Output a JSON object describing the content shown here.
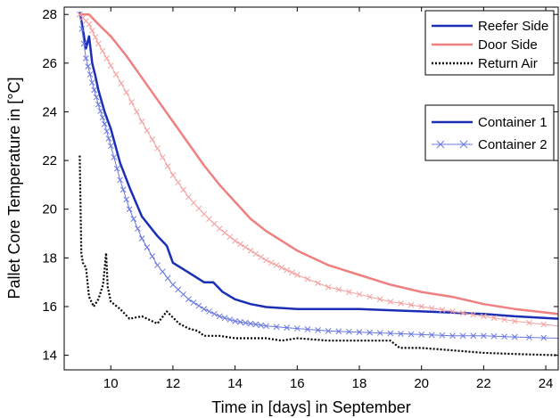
{
  "chart_data": {
    "type": "line",
    "title": "",
    "xlabel": "Time in [days] in September",
    "ylabel": "Pallet Core Temperature in [°C]",
    "xlim": [
      8.5,
      24.4
    ],
    "ylim": [
      13.4,
      28.3
    ],
    "xticks": [
      10,
      12,
      14,
      16,
      18,
      20,
      22,
      24
    ],
    "yticks": [
      14,
      16,
      18,
      20,
      22,
      24,
      26,
      28
    ],
    "grid": false,
    "legend_placement": "top-right",
    "legend_position_groups": [
      {
        "labels": [
          "Reefer Side",
          "Door Side",
          "Return Air"
        ]
      },
      {
        "labels": [
          "Container 1",
          "Container 2"
        ]
      }
    ],
    "series": [
      {
        "name": "Reefer Side",
        "container": "Container 1",
        "color": "#1a2fb5",
        "style": "solid",
        "x": [
          9.0,
          9.1,
          9.2,
          9.3,
          9.4,
          9.5,
          9.6,
          9.8,
          10.0,
          10.3,
          10.6,
          11.0,
          11.5,
          11.8,
          12.0,
          12.5,
          13.0,
          13.3,
          13.6,
          14.0,
          14.5,
          15.0,
          16.0,
          17.0,
          18.0,
          19.0,
          20.0,
          21.0,
          22.0,
          23.0,
          24.4
        ],
        "y": [
          28.1,
          27.4,
          26.6,
          27.1,
          26.0,
          25.5,
          24.9,
          24.0,
          23.3,
          21.9,
          20.9,
          19.7,
          18.9,
          18.5,
          17.8,
          17.4,
          17.0,
          17.0,
          16.6,
          16.3,
          16.1,
          15.98,
          15.9,
          15.9,
          15.9,
          15.85,
          15.8,
          15.75,
          15.7,
          15.6,
          15.5
        ]
      },
      {
        "name": "Door Side",
        "container": "Container 1",
        "color": "#f08080",
        "style": "solid",
        "x": [
          9.0,
          9.3,
          9.6,
          10.0,
          10.5,
          11.0,
          11.5,
          12.0,
          12.5,
          13.0,
          13.5,
          14.0,
          14.5,
          15.0,
          15.5,
          16.0,
          17.0,
          18.0,
          19.0,
          20.0,
          21.0,
          22.0,
          23.0,
          24.4
        ],
        "y": [
          28.0,
          28.0,
          27.6,
          27.1,
          26.3,
          25.4,
          24.5,
          23.6,
          22.7,
          21.8,
          21.0,
          20.3,
          19.6,
          19.1,
          18.7,
          18.3,
          17.7,
          17.3,
          16.9,
          16.6,
          16.4,
          16.1,
          15.9,
          15.7
        ]
      },
      {
        "name": "Return Air",
        "container": "Container 1",
        "color": "#000000",
        "style": "dotted",
        "x": [
          9.0,
          9.05,
          9.1,
          9.2,
          9.3,
          9.45,
          9.6,
          9.75,
          9.85,
          9.9,
          10.0,
          10.3,
          10.6,
          11.0,
          11.5,
          11.8,
          12.2,
          12.5,
          12.8,
          13.0,
          13.5,
          14.0,
          15.0,
          15.5,
          16.0,
          17.0,
          18.0,
          19.0,
          19.3,
          20.0,
          21.0,
          22.0,
          23.0,
          24.4
        ],
        "y": [
          22.2,
          18.2,
          17.8,
          17.6,
          16.4,
          16.0,
          16.3,
          16.9,
          18.2,
          16.8,
          16.2,
          15.9,
          15.5,
          15.6,
          15.3,
          15.8,
          15.3,
          15.1,
          15.0,
          14.8,
          14.8,
          14.7,
          14.7,
          14.6,
          14.7,
          14.6,
          14.6,
          14.6,
          14.3,
          14.3,
          14.2,
          14.1,
          14.05,
          14.0
        ]
      },
      {
        "name": "Reefer Side",
        "container": "Container 2",
        "color": "#6878e0",
        "style": "solid-x-markers",
        "x": [
          9.0,
          9.2,
          9.4,
          9.6,
          9.8,
          10.0,
          10.3,
          10.6,
          11.0,
          11.5,
          12.0,
          12.5,
          13.0,
          13.5,
          14.0,
          14.5,
          15.0,
          16.0,
          17.0,
          18.0,
          19.0,
          20.0,
          21.0,
          22.0,
          23.0,
          24.4
        ],
        "y": [
          28.0,
          26.2,
          25.2,
          24.3,
          23.5,
          22.6,
          21.2,
          20.0,
          18.8,
          17.7,
          16.9,
          16.3,
          15.9,
          15.6,
          15.4,
          15.3,
          15.2,
          15.1,
          15.0,
          14.95,
          14.9,
          14.85,
          14.8,
          14.8,
          14.75,
          14.7
        ]
      },
      {
        "name": "Door Side",
        "container": "Container 2",
        "color": "#f4a0a0",
        "style": "solid-x-markers",
        "x": [
          9.0,
          9.3,
          9.6,
          10.0,
          10.5,
          11.0,
          11.5,
          12.0,
          12.5,
          13.0,
          13.5,
          14.0,
          14.5,
          15.0,
          15.5,
          16.0,
          17.0,
          18.0,
          19.0,
          20.0,
          21.0,
          22.0,
          23.0,
          24.4
        ],
        "y": [
          28.0,
          27.6,
          26.8,
          25.9,
          24.8,
          23.6,
          22.5,
          21.4,
          20.5,
          19.8,
          19.2,
          18.7,
          18.3,
          17.9,
          17.6,
          17.3,
          16.8,
          16.5,
          16.2,
          16.0,
          15.8,
          15.6,
          15.4,
          15.2
        ]
      }
    ]
  }
}
